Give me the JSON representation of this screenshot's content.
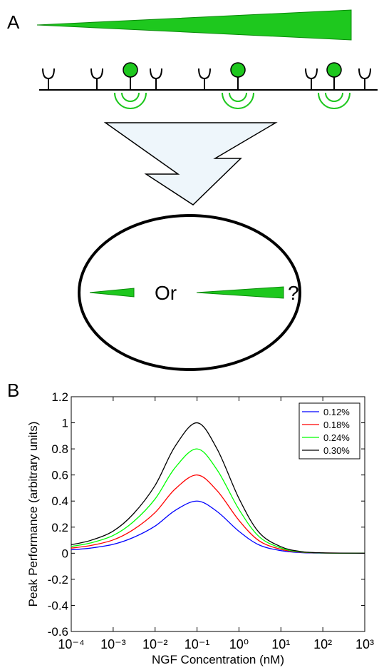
{
  "panel_a": {
    "label": "A",
    "or_text": "Or",
    "question": "?"
  },
  "chart_data": {
    "type": "line",
    "panel_label": "B",
    "x_label": "NGF Concentration (nM)",
    "y_label": "Peak Performance (arbitrary units)",
    "x_scale": "log",
    "x": [
      0.0001,
      0.0003,
      0.001,
      0.003,
      0.01,
      0.03,
      0.1,
      0.3,
      1,
      3,
      10,
      30,
      100,
      1000
    ],
    "series": [
      {
        "name": "0.12%",
        "color": "#0000ff",
        "values": [
          0.026,
          0.04,
          0.068,
          0.12,
          0.208,
          0.328,
          0.4,
          0.32,
          0.168,
          0.064,
          0.02,
          0.005,
          0.001,
          0
        ]
      },
      {
        "name": "0.18%",
        "color": "#ff0000",
        "values": [
          0.039,
          0.06,
          0.102,
          0.18,
          0.312,
          0.492,
          0.6,
          0.48,
          0.252,
          0.096,
          0.03,
          0.008,
          0.002,
          0
        ]
      },
      {
        "name": "0.24%",
        "color": "#00ff00",
        "values": [
          0.052,
          0.08,
          0.136,
          0.24,
          0.416,
          0.656,
          0.8,
          0.64,
          0.336,
          0.128,
          0.04,
          0.01,
          0.002,
          0
        ]
      },
      {
        "name": "0.30%",
        "color": "#000000",
        "values": [
          0.065,
          0.1,
          0.17,
          0.3,
          0.52,
          0.82,
          1.0,
          0.8,
          0.42,
          0.16,
          0.05,
          0.013,
          0.003,
          0
        ]
      }
    ],
    "xlim": [
      0.0001,
      1000
    ],
    "xticks": [
      {
        "value": 0.0001,
        "label": "10⁻⁴"
      },
      {
        "value": 0.001,
        "label": "10⁻³"
      },
      {
        "value": 0.01,
        "label": "10⁻²"
      },
      {
        "value": 0.1,
        "label": "10⁻¹"
      },
      {
        "value": 1,
        "label": "10⁰"
      },
      {
        "value": 10,
        "label": "10¹"
      },
      {
        "value": 100,
        "label": "10²"
      },
      {
        "value": 1000,
        "label": "10³"
      }
    ],
    "ylim": [
      -0.6,
      1.2
    ],
    "yticks": [
      -0.6,
      -0.4,
      -0.2,
      0,
      0.2,
      0.4,
      0.6,
      0.8,
      1,
      1.2
    ],
    "legend": "upper right"
  }
}
